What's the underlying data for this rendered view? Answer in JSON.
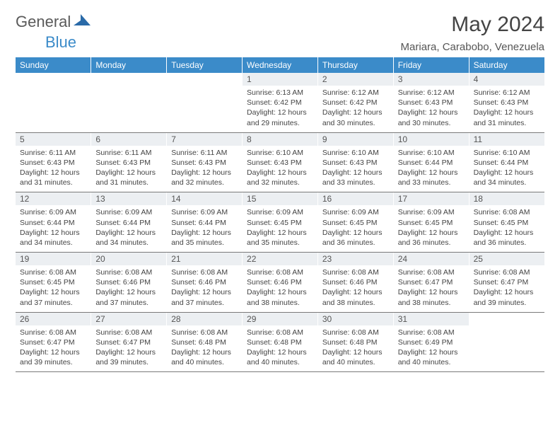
{
  "brand": {
    "part1": "General",
    "part2": "Blue"
  },
  "title": "May 2024",
  "location": "Mariara, Carabobo, Venezuela",
  "colors": {
    "header_bg": "#3b8bc9",
    "header_text": "#ffffff",
    "daynum_bg": "#eceff2",
    "daynum_text": "#555555",
    "body_text": "#444444",
    "rule": "#7a7a7a",
    "brand_gray": "#5a5a5a",
    "brand_blue": "#3b8bc9",
    "logo_shape": "#2a6aa8"
  },
  "layout": {
    "columns": 7,
    "rows": 5,
    "cell_font_size_pt": 8,
    "header_font_size_pt": 9,
    "title_font_size_pt": 22
  },
  "weekdays": [
    "Sunday",
    "Monday",
    "Tuesday",
    "Wednesday",
    "Thursday",
    "Friday",
    "Saturday"
  ],
  "weeks": [
    [
      null,
      null,
      null,
      {
        "n": "1",
        "sr": "Sunrise: 6:13 AM",
        "ss": "Sunset: 6:42 PM",
        "dl": "Daylight: 12 hours and 29 minutes."
      },
      {
        "n": "2",
        "sr": "Sunrise: 6:12 AM",
        "ss": "Sunset: 6:42 PM",
        "dl": "Daylight: 12 hours and 30 minutes."
      },
      {
        "n": "3",
        "sr": "Sunrise: 6:12 AM",
        "ss": "Sunset: 6:43 PM",
        "dl": "Daylight: 12 hours and 30 minutes."
      },
      {
        "n": "4",
        "sr": "Sunrise: 6:12 AM",
        "ss": "Sunset: 6:43 PM",
        "dl": "Daylight: 12 hours and 31 minutes."
      }
    ],
    [
      {
        "n": "5",
        "sr": "Sunrise: 6:11 AM",
        "ss": "Sunset: 6:43 PM",
        "dl": "Daylight: 12 hours and 31 minutes."
      },
      {
        "n": "6",
        "sr": "Sunrise: 6:11 AM",
        "ss": "Sunset: 6:43 PM",
        "dl": "Daylight: 12 hours and 31 minutes."
      },
      {
        "n": "7",
        "sr": "Sunrise: 6:11 AM",
        "ss": "Sunset: 6:43 PM",
        "dl": "Daylight: 12 hours and 32 minutes."
      },
      {
        "n": "8",
        "sr": "Sunrise: 6:10 AM",
        "ss": "Sunset: 6:43 PM",
        "dl": "Daylight: 12 hours and 32 minutes."
      },
      {
        "n": "9",
        "sr": "Sunrise: 6:10 AM",
        "ss": "Sunset: 6:43 PM",
        "dl": "Daylight: 12 hours and 33 minutes."
      },
      {
        "n": "10",
        "sr": "Sunrise: 6:10 AM",
        "ss": "Sunset: 6:44 PM",
        "dl": "Daylight: 12 hours and 33 minutes."
      },
      {
        "n": "11",
        "sr": "Sunrise: 6:10 AM",
        "ss": "Sunset: 6:44 PM",
        "dl": "Daylight: 12 hours and 34 minutes."
      }
    ],
    [
      {
        "n": "12",
        "sr": "Sunrise: 6:09 AM",
        "ss": "Sunset: 6:44 PM",
        "dl": "Daylight: 12 hours and 34 minutes."
      },
      {
        "n": "13",
        "sr": "Sunrise: 6:09 AM",
        "ss": "Sunset: 6:44 PM",
        "dl": "Daylight: 12 hours and 34 minutes."
      },
      {
        "n": "14",
        "sr": "Sunrise: 6:09 AM",
        "ss": "Sunset: 6:44 PM",
        "dl": "Daylight: 12 hours and 35 minutes."
      },
      {
        "n": "15",
        "sr": "Sunrise: 6:09 AM",
        "ss": "Sunset: 6:45 PM",
        "dl": "Daylight: 12 hours and 35 minutes."
      },
      {
        "n": "16",
        "sr": "Sunrise: 6:09 AM",
        "ss": "Sunset: 6:45 PM",
        "dl": "Daylight: 12 hours and 36 minutes."
      },
      {
        "n": "17",
        "sr": "Sunrise: 6:09 AM",
        "ss": "Sunset: 6:45 PM",
        "dl": "Daylight: 12 hours and 36 minutes."
      },
      {
        "n": "18",
        "sr": "Sunrise: 6:08 AM",
        "ss": "Sunset: 6:45 PM",
        "dl": "Daylight: 12 hours and 36 minutes."
      }
    ],
    [
      {
        "n": "19",
        "sr": "Sunrise: 6:08 AM",
        "ss": "Sunset: 6:45 PM",
        "dl": "Daylight: 12 hours and 37 minutes."
      },
      {
        "n": "20",
        "sr": "Sunrise: 6:08 AM",
        "ss": "Sunset: 6:46 PM",
        "dl": "Daylight: 12 hours and 37 minutes."
      },
      {
        "n": "21",
        "sr": "Sunrise: 6:08 AM",
        "ss": "Sunset: 6:46 PM",
        "dl": "Daylight: 12 hours and 37 minutes."
      },
      {
        "n": "22",
        "sr": "Sunrise: 6:08 AM",
        "ss": "Sunset: 6:46 PM",
        "dl": "Daylight: 12 hours and 38 minutes."
      },
      {
        "n": "23",
        "sr": "Sunrise: 6:08 AM",
        "ss": "Sunset: 6:46 PM",
        "dl": "Daylight: 12 hours and 38 minutes."
      },
      {
        "n": "24",
        "sr": "Sunrise: 6:08 AM",
        "ss": "Sunset: 6:47 PM",
        "dl": "Daylight: 12 hours and 38 minutes."
      },
      {
        "n": "25",
        "sr": "Sunrise: 6:08 AM",
        "ss": "Sunset: 6:47 PM",
        "dl": "Daylight: 12 hours and 39 minutes."
      }
    ],
    [
      {
        "n": "26",
        "sr": "Sunrise: 6:08 AM",
        "ss": "Sunset: 6:47 PM",
        "dl": "Daylight: 12 hours and 39 minutes."
      },
      {
        "n": "27",
        "sr": "Sunrise: 6:08 AM",
        "ss": "Sunset: 6:47 PM",
        "dl": "Daylight: 12 hours and 39 minutes."
      },
      {
        "n": "28",
        "sr": "Sunrise: 6:08 AM",
        "ss": "Sunset: 6:48 PM",
        "dl": "Daylight: 12 hours and 40 minutes."
      },
      {
        "n": "29",
        "sr": "Sunrise: 6:08 AM",
        "ss": "Sunset: 6:48 PM",
        "dl": "Daylight: 12 hours and 40 minutes."
      },
      {
        "n": "30",
        "sr": "Sunrise: 6:08 AM",
        "ss": "Sunset: 6:48 PM",
        "dl": "Daylight: 12 hours and 40 minutes."
      },
      {
        "n": "31",
        "sr": "Sunrise: 6:08 AM",
        "ss": "Sunset: 6:49 PM",
        "dl": "Daylight: 12 hours and 40 minutes."
      },
      null
    ]
  ]
}
